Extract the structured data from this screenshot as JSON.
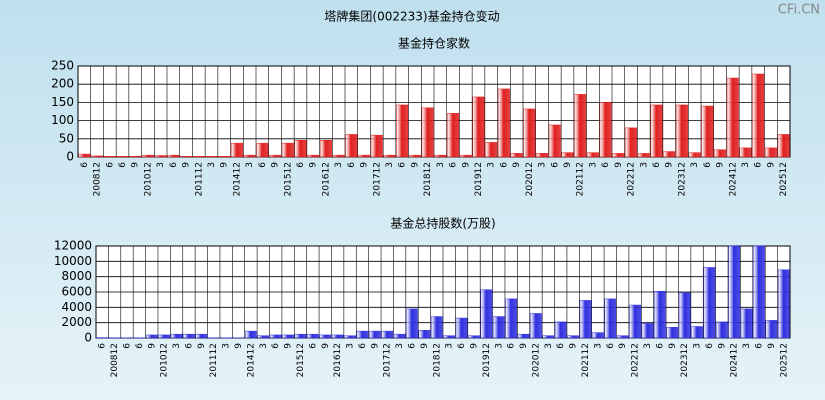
{
  "title": "塔牌集团(002233)基金持仓变动",
  "watermark": "CFi.CN",
  "chart_data": [
    {
      "type": "bar",
      "title": "基金持仓家数",
      "color": "#e02020",
      "categories": [
        "6",
        "200812",
        "6",
        "6",
        "9",
        "201012",
        "3",
        "6",
        "9",
        "201112",
        "3",
        "9",
        "201412",
        "3",
        "6",
        "9",
        "201512",
        "6",
        "9",
        "201612",
        "3",
        "6",
        "9",
        "201712",
        "3",
        "6",
        "9",
        "201812",
        "3",
        "6",
        "9",
        "201912",
        "3",
        "6",
        "9",
        "202012",
        "3",
        "6",
        "9",
        "202112",
        "3",
        "6",
        "9",
        "202212",
        "3",
        "6",
        "9",
        "202312",
        "3",
        "6",
        "9",
        "202412",
        "3",
        "6",
        "9",
        "202512"
      ],
      "values": [
        8,
        3,
        2,
        2,
        2,
        5,
        4,
        5,
        2,
        2,
        2,
        2,
        38,
        5,
        38,
        5,
        38,
        46,
        5,
        46,
        5,
        62,
        5,
        60,
        5,
        143,
        5,
        135,
        5,
        120,
        5,
        165,
        40,
        187,
        10,
        132,
        10,
        88,
        12,
        172,
        12,
        150,
        10,
        80,
        10,
        143,
        15,
        143,
        12,
        140,
        20,
        217,
        25,
        228,
        25,
        62
      ],
      "ylim": [
        0,
        250
      ],
      "yticks": [
        0,
        50,
        100,
        150,
        200,
        250
      ],
      "grid": true
    },
    {
      "type": "bar",
      "title": "基金总持股数(万股)",
      "color": "#3030e0",
      "categories": [
        "6",
        "200812",
        "6",
        "6",
        "9",
        "201012",
        "3",
        "6",
        "9",
        "201112",
        "3",
        "9",
        "201412",
        "3",
        "6",
        "9",
        "201512",
        "6",
        "9",
        "201612",
        "3",
        "6",
        "9",
        "201712",
        "3",
        "6",
        "9",
        "201812",
        "3",
        "6",
        "9",
        "201912",
        "3",
        "6",
        "9",
        "202012",
        "3",
        "6",
        "9",
        "202112",
        "3",
        "6",
        "9",
        "202212",
        "3",
        "6",
        "9",
        "202312",
        "3",
        "6",
        "9",
        "202412",
        "3",
        "6",
        "9",
        "202512"
      ],
      "values": [
        50,
        30,
        30,
        30,
        400,
        400,
        500,
        500,
        500,
        30,
        30,
        30,
        900,
        300,
        400,
        400,
        500,
        500,
        400,
        400,
        300,
        900,
        900,
        900,
        500,
        3800,
        1000,
        2800,
        300,
        2600,
        300,
        6300,
        2800,
        5100,
        500,
        3200,
        300,
        2100,
        300,
        4900,
        700,
        5100,
        300,
        4300,
        1900,
        6100,
        1400,
        5900,
        1500,
        9200,
        2100,
        12000,
        3800,
        12000,
        2300,
        8900
      ],
      "ylim": [
        0,
        12000
      ],
      "yticks": [
        0,
        2000,
        4000,
        6000,
        8000,
        10000,
        12000
      ],
      "grid": true
    }
  ]
}
